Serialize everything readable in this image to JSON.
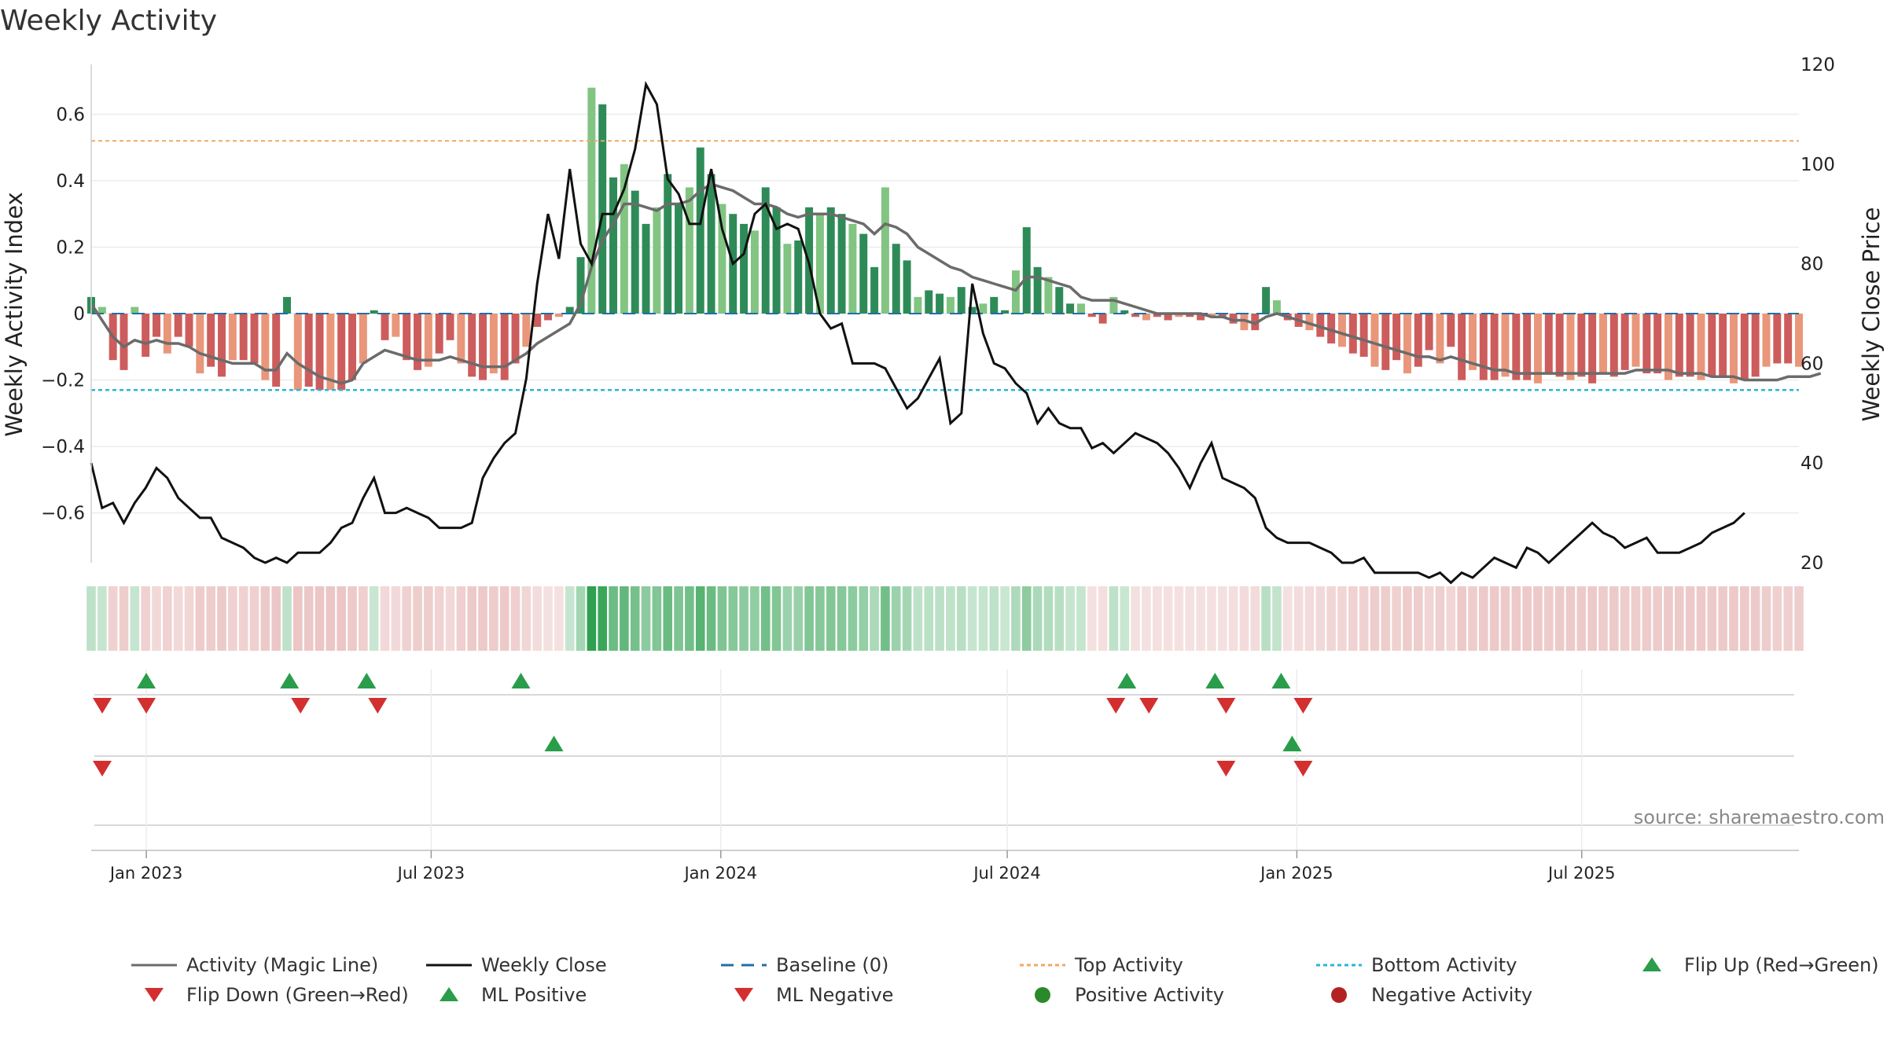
{
  "chart_data": {
    "type": "bar",
    "title": "Weekly Activity",
    "ylabel_left": "Weekly Activity Index",
    "ylabel_right": "Weekly Close Price",
    "ylim_left": [
      -0.75,
      0.75
    ],
    "ylim_right": [
      20,
      120
    ],
    "yticks_left": [
      -0.6,
      -0.4,
      -0.2,
      0,
      0.2,
      0.4,
      0.6
    ],
    "yticks_left_labels": [
      "−0.6",
      "−0.4",
      "−0.2",
      "0",
      "0.2",
      "0.4",
      "0.6"
    ],
    "yticks_right": [
      20,
      40,
      60,
      80,
      100,
      120
    ],
    "x_start": "2022-11-27",
    "x_end": "2025-11-16",
    "x_ticks": [
      {
        "date": "2023-01-01",
        "label": "Jan 2023"
      },
      {
        "date": "2023-07-01",
        "label": "Jul 2023"
      },
      {
        "date": "2024-01-01",
        "label": "Jan 2024"
      },
      {
        "date": "2024-07-01",
        "label": "Jul 2024"
      },
      {
        "date": "2025-01-01",
        "label": "Jan 2025"
      },
      {
        "date": "2025-07-01",
        "label": "Jul 2025"
      }
    ],
    "top_activity": 0.52,
    "bottom_activity": -0.23,
    "baseline": 0,
    "grid": true,
    "activity": [
      0.05,
      0.02,
      -0.14,
      -0.17,
      0.02,
      -0.13,
      -0.07,
      -0.12,
      -0.07,
      -0.1,
      -0.18,
      -0.16,
      -0.19,
      -0.14,
      -0.14,
      -0.15,
      -0.2,
      -0.22,
      0.05,
      -0.23,
      -0.22,
      -0.23,
      -0.23,
      -0.23,
      -0.2,
      -0.15,
      0.01,
      -0.08,
      -0.07,
      -0.14,
      -0.17,
      -0.16,
      -0.12,
      -0.08,
      -0.15,
      -0.19,
      -0.2,
      -0.18,
      -0.2,
      -0.15,
      -0.1,
      -0.04,
      -0.02,
      -0.01,
      0.02,
      0.17,
      0.68,
      0.63,
      0.41,
      0.45,
      0.37,
      0.27,
      0.32,
      0.42,
      0.33,
      0.38,
      0.5,
      0.42,
      0.33,
      0.3,
      0.27,
      0.25,
      0.38,
      0.32,
      0.21,
      0.22,
      0.32,
      0.3,
      0.32,
      0.3,
      0.27,
      0.24,
      0.14,
      0.38,
      0.21,
      0.16,
      0.05,
      0.07,
      0.06,
      0.05,
      0.08,
      0.02,
      0.03,
      0.05,
      0.01,
      0.13,
      0.26,
      0.14,
      0.11,
      0.08,
      0.03,
      0.03,
      -0.01,
      -0.03,
      0.05,
      0.01,
      -0.01,
      -0.02,
      -0.01,
      -0.02,
      -0.01,
      -0.01,
      -0.02,
      -0.01,
      -0.01,
      -0.03,
      -0.05,
      -0.05,
      0.08,
      0.04,
      -0.02,
      -0.04,
      -0.05,
      -0.07,
      -0.09,
      -0.1,
      -0.12,
      -0.13,
      -0.16,
      -0.17,
      -0.14,
      -0.18,
      -0.16,
      -0.11,
      -0.15,
      -0.1,
      -0.2,
      -0.17,
      -0.2,
      -0.2,
      -0.19,
      -0.2,
      -0.2,
      -0.21,
      -0.18,
      -0.19,
      -0.2,
      -0.19,
      -0.21,
      -0.18,
      -0.19,
      -0.17,
      -0.16,
      -0.18,
      -0.18,
      -0.2,
      -0.19,
      -0.19,
      -0.2,
      -0.19,
      -0.19,
      -0.21,
      -0.2,
      -0.19,
      -0.16,
      -0.15,
      -0.15,
      -0.16
    ],
    "magic_line": [
      0.03,
      -0.02,
      -0.07,
      -0.1,
      -0.08,
      -0.09,
      -0.08,
      -0.09,
      -0.09,
      -0.1,
      -0.12,
      -0.13,
      -0.14,
      -0.15,
      -0.15,
      -0.15,
      -0.17,
      -0.17,
      -0.12,
      -0.15,
      -0.17,
      -0.19,
      -0.2,
      -0.21,
      -0.2,
      -0.15,
      -0.13,
      -0.11,
      -0.12,
      -0.13,
      -0.14,
      -0.14,
      -0.14,
      -0.13,
      -0.14,
      -0.15,
      -0.16,
      -0.16,
      -0.16,
      -0.14,
      -0.12,
      -0.09,
      -0.07,
      -0.05,
      -0.03,
      0.03,
      0.14,
      0.22,
      0.27,
      0.33,
      0.33,
      0.32,
      0.31,
      0.33,
      0.33,
      0.34,
      0.37,
      0.39,
      0.38,
      0.37,
      0.35,
      0.33,
      0.33,
      0.32,
      0.3,
      0.29,
      0.3,
      0.3,
      0.3,
      0.29,
      0.28,
      0.27,
      0.24,
      0.27,
      0.26,
      0.24,
      0.2,
      0.18,
      0.16,
      0.14,
      0.13,
      0.11,
      0.1,
      0.09,
      0.08,
      0.07,
      0.11,
      0.11,
      0.1,
      0.09,
      0.08,
      0.05,
      0.04,
      0.04,
      0.04,
      0.03,
      0.02,
      0.01,
      0.0,
      0.0,
      0.0,
      0.0,
      0.0,
      -0.01,
      -0.01,
      -0.02,
      -0.02,
      -0.03,
      -0.01,
      0.0,
      -0.01,
      -0.02,
      -0.03,
      -0.04,
      -0.05,
      -0.06,
      -0.07,
      -0.08,
      -0.09,
      -0.1,
      -0.11,
      -0.12,
      -0.13,
      -0.13,
      -0.14,
      -0.13,
      -0.14,
      -0.15,
      -0.16,
      -0.17,
      -0.17,
      -0.18,
      -0.18,
      -0.18,
      -0.18,
      -0.18,
      -0.18,
      -0.18,
      -0.18,
      -0.18,
      -0.18,
      -0.18,
      -0.17,
      -0.17,
      -0.17,
      -0.17,
      -0.18,
      -0.18,
      -0.18,
      -0.19,
      -0.19,
      -0.19,
      -0.2,
      -0.2,
      -0.2,
      -0.2,
      -0.19,
      -0.19,
      -0.19,
      -0.18
    ],
    "weekly_close": [
      40,
      31,
      32,
      28,
      32,
      35,
      39,
      37,
      33,
      31,
      29,
      29,
      25,
      24,
      23,
      21,
      20,
      21,
      20,
      22,
      22,
      22,
      24,
      27,
      28,
      33,
      37,
      30,
      30,
      31,
      30,
      29,
      27,
      27,
      27,
      28,
      37,
      41,
      44,
      46,
      57,
      76,
      90,
      81,
      99,
      84,
      80,
      90,
      90,
      95,
      103,
      116,
      112,
      97,
      94,
      88,
      88,
      99,
      87,
      80,
      82,
      90,
      92,
      87,
      88,
      87,
      80,
      70,
      67,
      68,
      60,
      60,
      60,
      59,
      55,
      51,
      53,
      57,
      61,
      48,
      50,
      76,
      66,
      60,
      59,
      56,
      54,
      48,
      51,
      48,
      47,
      47,
      43,
      44,
      42,
      44,
      46,
      45,
      44,
      42,
      39,
      35,
      40,
      44,
      37,
      36,
      35,
      33,
      27,
      25,
      24,
      24,
      24,
      23,
      22,
      20,
      20,
      21,
      18,
      18,
      18,
      18,
      18,
      17,
      18,
      16,
      18,
      17,
      19,
      21,
      20,
      19,
      23,
      22,
      20,
      22,
      24,
      26,
      28,
      26,
      25,
      23,
      24,
      25,
      22,
      22,
      22,
      23,
      24,
      26,
      27,
      28,
      30
    ],
    "flip_up_dates": [
      "2023-01-01",
      "2023-04-02",
      "2023-05-21",
      "2023-08-27",
      "2024-09-15",
      "2024-11-10",
      "2024-12-22"
    ],
    "flip_down_dates": [
      "2022-12-04",
      "2023-01-01",
      "2023-04-09",
      "2023-05-28",
      "2024-09-08",
      "2024-09-29",
      "2024-11-17",
      "2025-01-05"
    ],
    "ml_positive_dates": [
      "2023-09-17",
      "2024-12-29"
    ],
    "ml_negative_dates": [
      "2022-12-04",
      "2024-11-17",
      "2025-01-05"
    ],
    "legend": [
      {
        "label": "Activity (Magic Line)",
        "kind": "line",
        "color": "#6b6b6b",
        "dash": ""
      },
      {
        "label": "Weekly Close",
        "kind": "line",
        "color": "#111111",
        "dash": ""
      },
      {
        "label": "Baseline (0)",
        "kind": "line",
        "color": "#1f6fa8",
        "dash": "16,10"
      },
      {
        "label": "Top Activity",
        "kind": "line",
        "color": "#f0a860",
        "dash": "5,4"
      },
      {
        "label": "Bottom Activity",
        "kind": "line",
        "color": "#29b6d8",
        "dash": "5,4"
      },
      {
        "label": "Flip Up (Red→Green)",
        "kind": "tri-up",
        "color": "#2a9d4a"
      },
      {
        "label": "Flip Down (Green→Red)",
        "kind": "tri-down",
        "color": "#d32f2f"
      },
      {
        "label": "ML Positive",
        "kind": "tri-up",
        "color": "#2a9d4a"
      },
      {
        "label": "ML Negative",
        "kind": "tri-down",
        "color": "#d32f2f"
      },
      {
        "label": "Positive Activity",
        "kind": "dot",
        "color": "#2a8a2a"
      },
      {
        "label": "Negative Activity",
        "kind": "dot",
        "color": "#b22222"
      }
    ],
    "colors": {
      "pos_strong": "#2e8b57",
      "pos_light": "#82c482",
      "neg_strong": "#cd5c5c",
      "neg_light": "#e9967a",
      "magic_line": "#6b6b6b",
      "close": "#111111"
    },
    "source": "source: sharemaestro.com"
  }
}
